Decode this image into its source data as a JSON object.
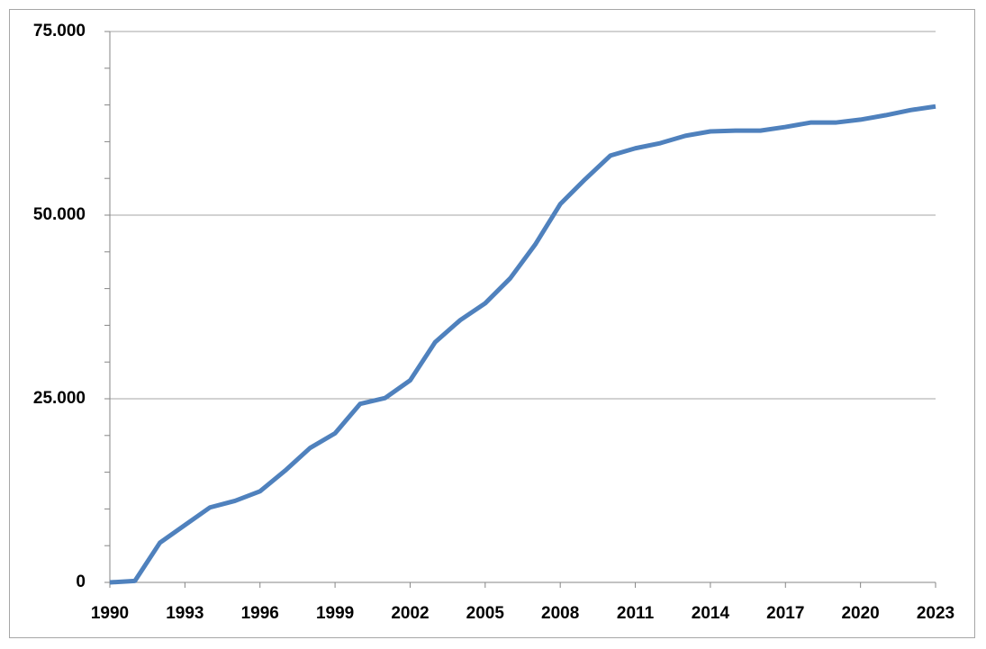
{
  "chart_data": {
    "type": "line",
    "x": [
      1990,
      1991,
      1992,
      1993,
      1994,
      1995,
      1996,
      1997,
      1998,
      1999,
      2000,
      2001,
      2002,
      2003,
      2004,
      2005,
      2006,
      2007,
      2008,
      2009,
      2010,
      2011,
      2012,
      2013,
      2014,
      2015,
      2016,
      2017,
      2018,
      2019,
      2020,
      2021,
      2022,
      2023
    ],
    "values": [
      0,
      200,
      5400,
      7800,
      10200,
      11100,
      12400,
      15200,
      18300,
      20300,
      24300,
      25100,
      27500,
      32700,
      35700,
      38000,
      41400,
      46000,
      51500,
      54900,
      58100,
      59100,
      59800,
      60800,
      61400,
      61500,
      61500,
      62000,
      62600,
      62600,
      63000,
      63600,
      64300,
      64800
    ],
    "color": "#4f81bd",
    "xlim": [
      1990,
      2023
    ],
    "xticks": [
      1990,
      1993,
      1996,
      1999,
      2002,
      2005,
      2008,
      2011,
      2014,
      2017,
      2020,
      2023
    ],
    "ylim": [
      0,
      75000
    ],
    "yticks": [
      0,
      {
        "value": 25000,
        "label": "25.000"
      },
      {
        "value": 50000,
        "label": "50.000"
      },
      {
        "value": 75000,
        "label": "75.000"
      }
    ],
    "yminorticks": [
      5000,
      10000,
      15000,
      20000,
      30000,
      35000,
      40000,
      45000,
      55000,
      60000,
      65000,
      70000
    ],
    "grid": true
  }
}
